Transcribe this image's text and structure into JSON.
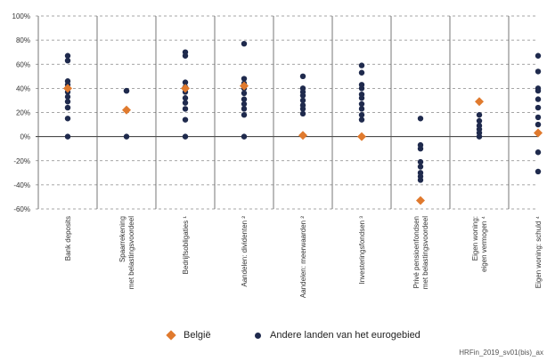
{
  "chart_data": {
    "type": "scatter",
    "title": "",
    "xlabel": "",
    "ylabel": "",
    "ylim": [
      -60,
      100
    ],
    "y_ticks": [
      "100%",
      "80%",
      "60%",
      "40%",
      "20%",
      "0%",
      "-20%",
      "-40%",
      "-60%"
    ],
    "grid": true,
    "legend_position": "bottom",
    "categories": [
      [
        "Bank deposits"
      ],
      [
        "Spaarrekening",
        "met belastingsvoordeel"
      ],
      [
        "Bedrijfsobligaties ¹"
      ],
      [
        "Aandelen: dividenten ²"
      ],
      [
        "Aandelen: meerwaarden ²"
      ],
      [
        "Investeringsfondsen ³"
      ],
      [
        "Privé pensioenfondsen",
        "met belastingsvoordeel"
      ],
      [
        "Eigen woning:",
        "eigen vermogen ⁴"
      ],
      [
        "Eigen woning: schuld ⁴"
      ]
    ],
    "series": [
      {
        "name": "België",
        "color": "#e07a2e",
        "marker": "diamond",
        "values": [
          40,
          22,
          40,
          42,
          1,
          0,
          -53,
          29,
          3
        ]
      },
      {
        "name": "Andere landen van het eurogebied",
        "color": "#1f2a4d",
        "marker": "circle",
        "points": [
          [
            67,
            63,
            46,
            43,
            40,
            37,
            33,
            29,
            24,
            15,
            0
          ],
          [
            38,
            38,
            0
          ],
          [
            70,
            67,
            45,
            41,
            37,
            32,
            28,
            23,
            14,
            0
          ],
          [
            77,
            48,
            44,
            40,
            36,
            31,
            27,
            23,
            18,
            0
          ],
          [
            50,
            40,
            37,
            34,
            30,
            26,
            23,
            19
          ],
          [
            59,
            53,
            43,
            40,
            35,
            32,
            27,
            23,
            18,
            14
          ],
          [
            15,
            -7,
            -10,
            -21,
            -25,
            -30,
            -33,
            -36
          ],
          [
            18,
            13,
            9,
            6,
            3,
            0
          ],
          [
            67,
            54,
            40,
            38,
            31,
            24,
            16,
            10,
            3,
            -13,
            -29
          ]
        ]
      }
    ],
    "source_note": "HRFin_2019_sv01(bis)_ax"
  }
}
